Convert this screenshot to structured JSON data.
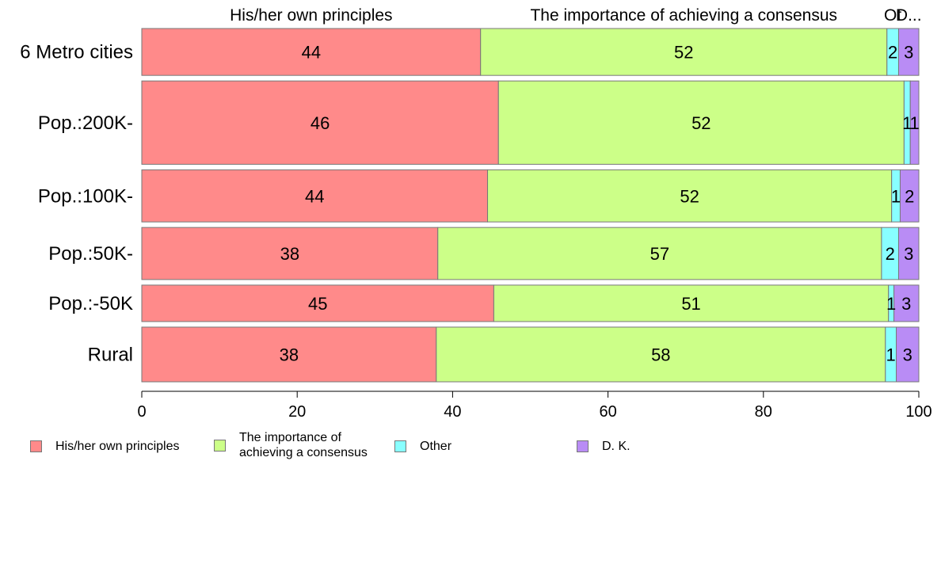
{
  "chart_data": {
    "type": "bar",
    "orientation": "horizontal",
    "stacked": true,
    "title": "",
    "xlabel": "",
    "ylabel": "",
    "xlim": [
      0,
      100
    ],
    "x_ticks": [
      0,
      20,
      40,
      60,
      80,
      100
    ],
    "grid": false,
    "legend_position": "bottom-left",
    "categories": [
      "6 Metro cities",
      "Pop.:200K-",
      "Pop.:100K-",
      "Pop.:50K-",
      "Pop.:-50K",
      "Rural"
    ],
    "category_weights": [
      0.9,
      1.6,
      1.0,
      1.0,
      0.7,
      1.05
    ],
    "series": [
      {
        "name": "His/her own principles",
        "color": "#ff8a8a",
        "values": [
          43.6,
          45.9,
          44.5,
          38.1,
          45.3,
          37.9
        ]
      },
      {
        "name": "The importance of achieving a consensus",
        "color": "#ccff88",
        "values": [
          52.3,
          52.2,
          52.0,
          57.1,
          50.8,
          57.8
        ]
      },
      {
        "name": "Other",
        "color": "#88ffff",
        "values": [
          1.5,
          0.8,
          1.1,
          2.2,
          0.7,
          1.4
        ]
      },
      {
        "name": "D. K.",
        "color": "#b98cf5",
        "values": [
          2.6,
          1.1,
          2.4,
          2.6,
          3.2,
          2.9
        ]
      }
    ],
    "data_labels": [
      [
        "44",
        "52",
        "2",
        "3"
      ],
      [
        "46",
        "52",
        "1",
        "1"
      ],
      [
        "44",
        "52",
        "1",
        "2"
      ],
      [
        "38",
        "57",
        "2",
        "3"
      ],
      [
        "45",
        "51",
        "1",
        "3"
      ],
      [
        "38",
        "58",
        "1",
        "3"
      ]
    ],
    "top_labels": [
      "His/her own principles",
      "The importance of achieving a consensus",
      "Ot",
      "D..."
    ],
    "legend": [
      {
        "lines": [
          "His/her own principles"
        ],
        "color": "#ff8a8a"
      },
      {
        "lines": [
          "The importance of",
          "achieving a consensus"
        ],
        "color": "#ccff88"
      },
      {
        "lines": [
          "Other"
        ],
        "color": "#88ffff"
      },
      {
        "lines": [
          "D. K."
        ],
        "color": "#b98cf5"
      }
    ]
  }
}
